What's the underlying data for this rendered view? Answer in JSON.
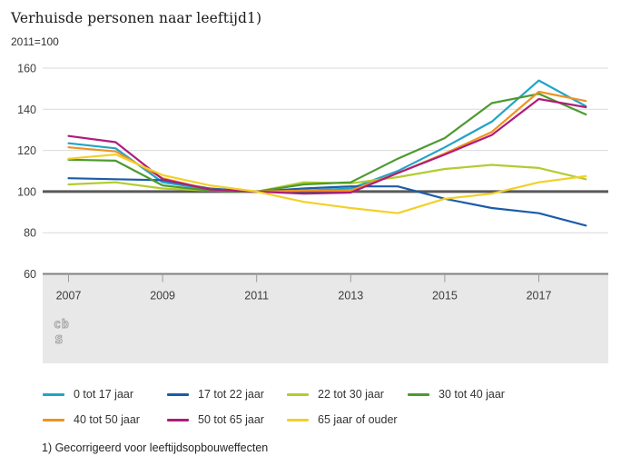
{
  "title": "Verhuisde personen naar leeftijd1)",
  "subtitle": "2011=100",
  "footnote": "1) Gecorrigeerd voor leeftijdsopbouweffecten",
  "logo": {
    "line1": "cb",
    "line2": "s"
  },
  "palette": {
    "band": "#e8e8e8",
    "gridline": "#d9d9d9",
    "baseline": "#595959",
    "axis_line": "#808080",
    "tick": "#9b9b9b",
    "axis_text": "#3d3d3d"
  },
  "chart_data": {
    "type": "line",
    "title": "Verhuisde personen naar leeftijd1)",
    "subtitle": "2011=100",
    "x": [
      2007,
      2008,
      2009,
      2010,
      2011,
      2012,
      2013,
      2014,
      2015,
      2016,
      2017,
      2018
    ],
    "x_tick_labels": [
      "2007",
      "2009",
      "2011",
      "2013",
      "2015",
      "2017"
    ],
    "x_tick_years": [
      2007,
      2009,
      2011,
      2013,
      2015,
      2017
    ],
    "y_tick_labels": [
      "60",
      "80",
      "100",
      "120",
      "140",
      "160"
    ],
    "y_ticks": [
      60,
      80,
      100,
      120,
      140,
      160
    ],
    "ylim": [
      60,
      160
    ],
    "baseline_value": 100,
    "grid": true,
    "legend_position": "bottom",
    "series": [
      {
        "name": "0 tot 17 jaar",
        "color": "#23a3c7",
        "values": [
          123.5,
          121,
          104.5,
          101,
          100,
          100.5,
          101.5,
          110,
          121.5,
          134,
          154,
          141.5
        ]
      },
      {
        "name": "17 tot 22 jaar",
        "color": "#1c5ca8",
        "values": [
          106.5,
          106,
          105.5,
          101.5,
          100,
          101.5,
          102.5,
          102.5,
          96.5,
          92,
          89.5,
          83.5
        ]
      },
      {
        "name": "22 tot 30 jaar",
        "color": "#b2cc30",
        "values": [
          103.5,
          104.5,
          101.5,
          100.5,
          100,
          104.5,
          104,
          107,
          111,
          113,
          111.5,
          106
        ]
      },
      {
        "name": "30 tot 40 jaar",
        "color": "#4c9a2f",
        "values": [
          115.5,
          115,
          103,
          100.5,
          100,
          103.5,
          104.5,
          116,
          126,
          143,
          147.5,
          137.5
        ]
      },
      {
        "name": "40 tot 50 jaar",
        "color": "#ef9221",
        "values": [
          121.5,
          119.5,
          106.5,
          101,
          100,
          100.5,
          100.5,
          109,
          118.5,
          129,
          148.5,
          144
        ]
      },
      {
        "name": "50 tot 65 jaar",
        "color": "#ae1c7a",
        "values": [
          127,
          124,
          106,
          101,
          100,
          99,
          99.5,
          109,
          118,
          127.5,
          145,
          141
        ]
      },
      {
        "name": "65 jaar of ouder",
        "color": "#f3d028",
        "values": [
          116,
          118,
          108,
          103,
          100,
          95,
          92,
          89.5,
          96.5,
          99,
          104.5,
          107.5
        ]
      }
    ]
  }
}
